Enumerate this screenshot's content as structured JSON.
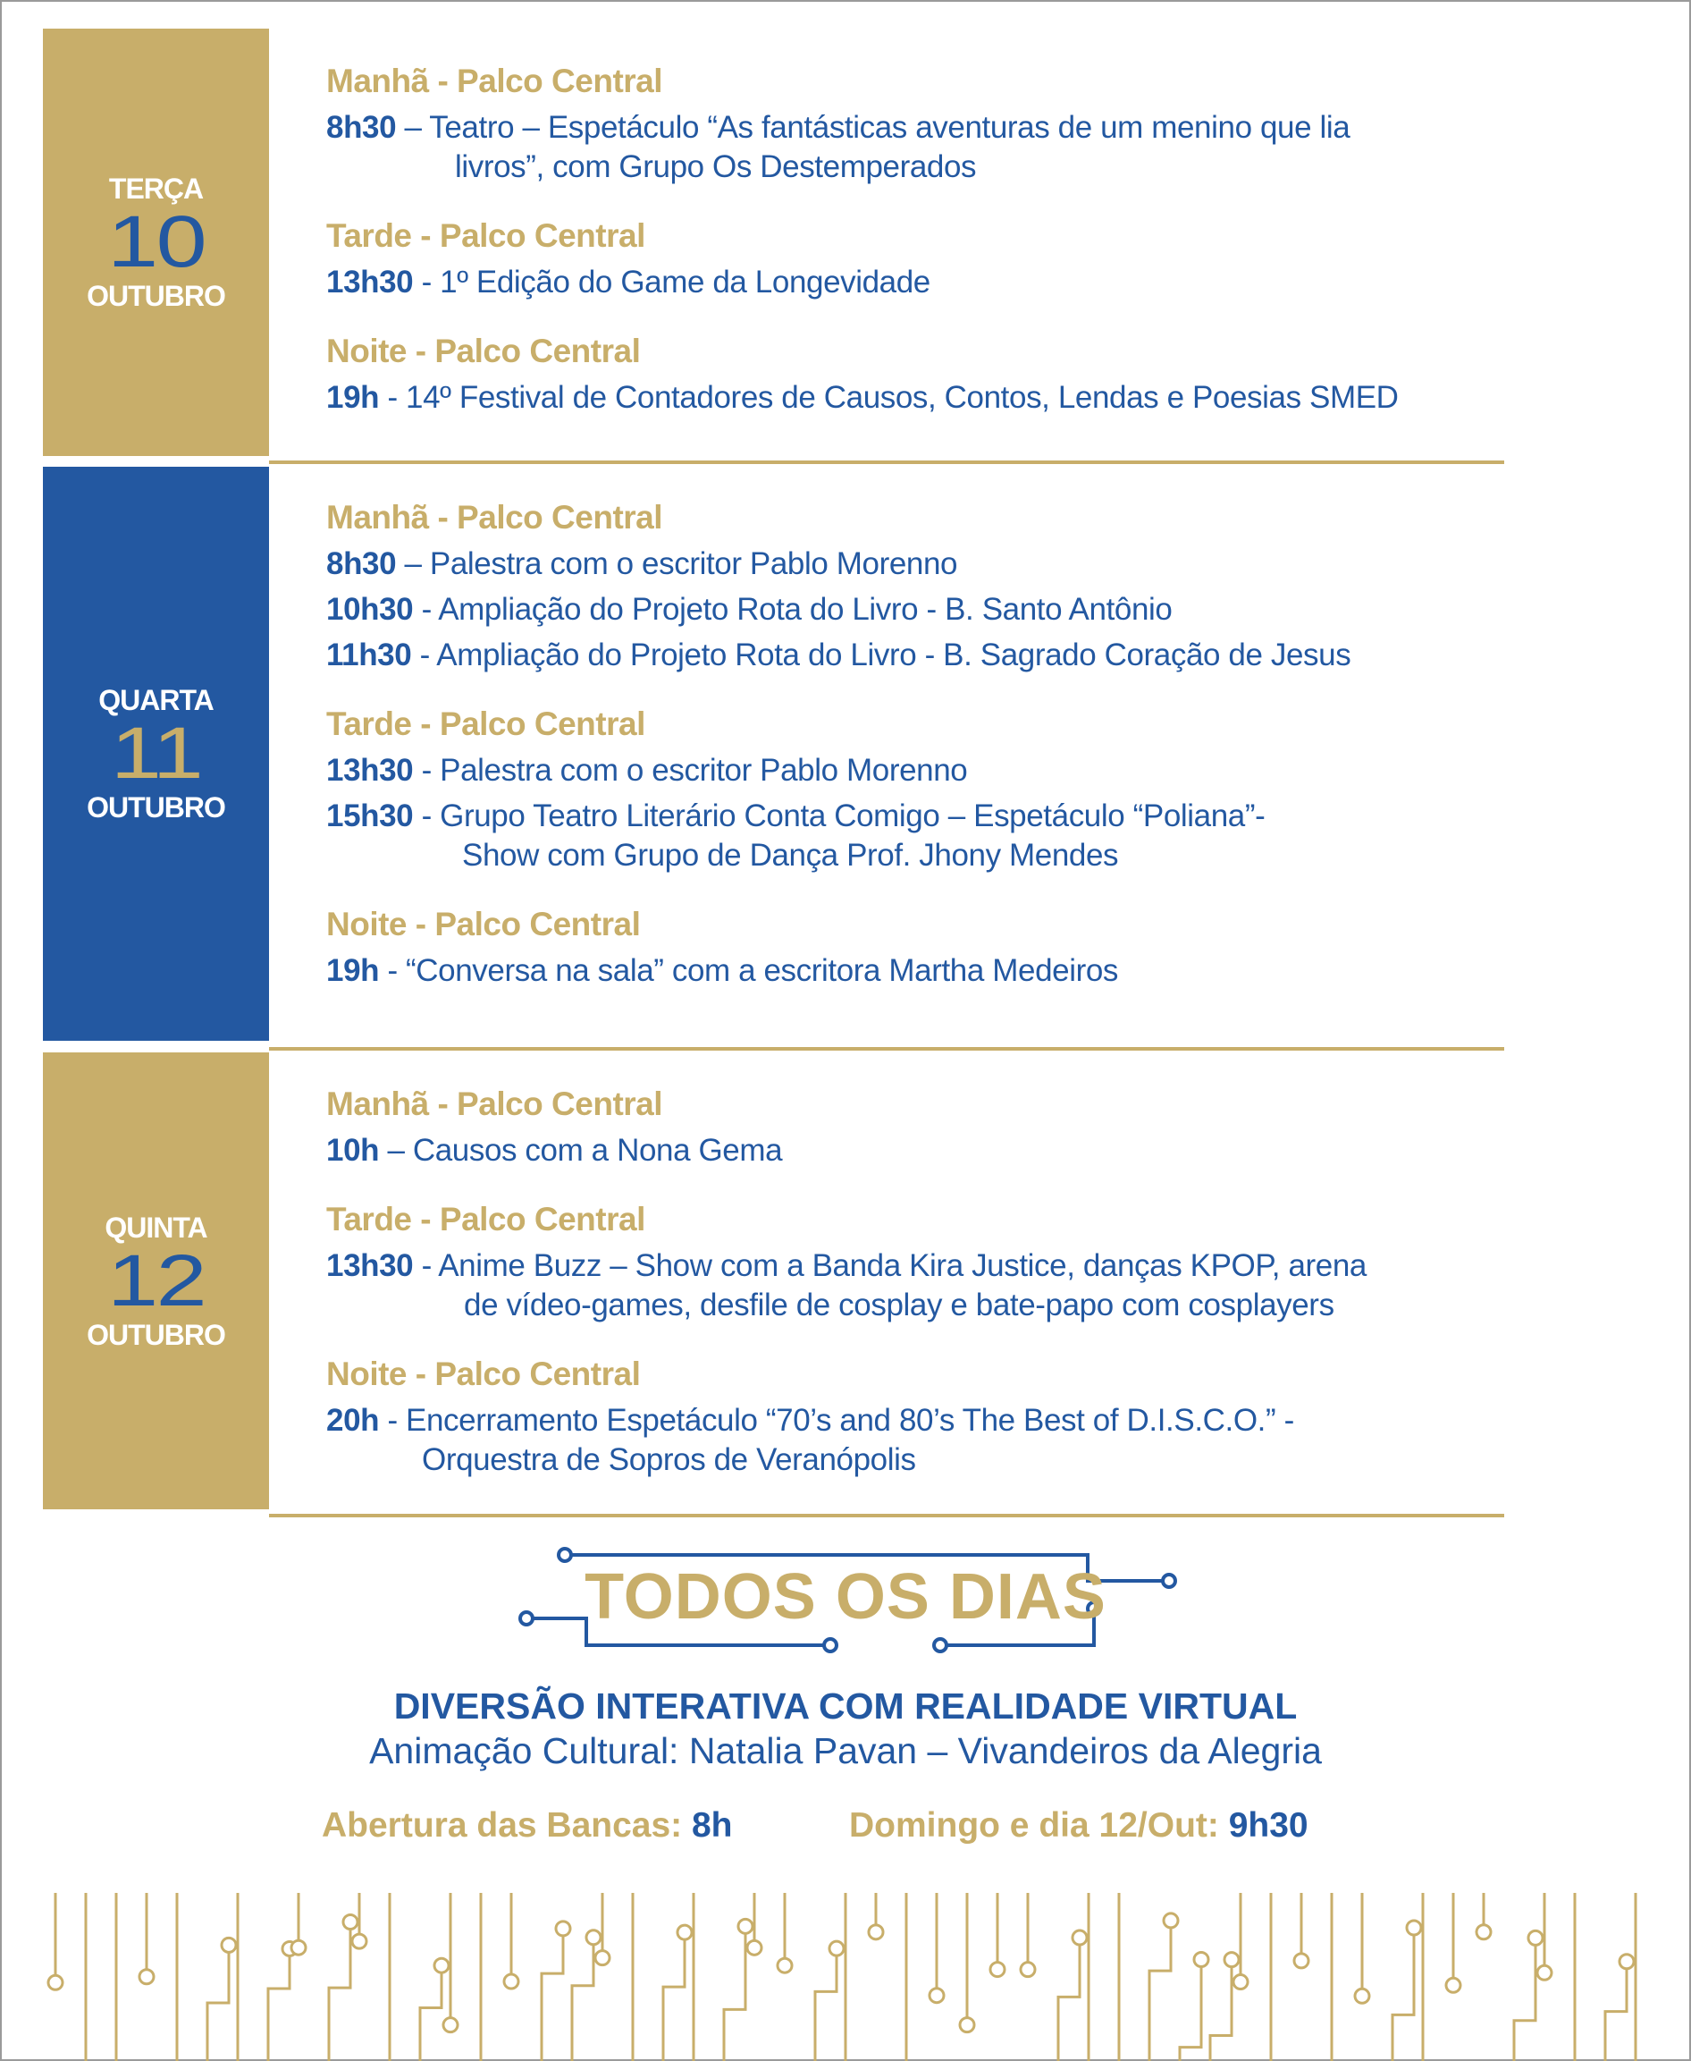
{
  "colors": {
    "gold": "#c8ae6a",
    "blue": "#2358a1"
  },
  "days": [
    {
      "name": "TERÇA",
      "number": "10",
      "month": "OUTUBRO",
      "box_color": "#c8ae6a",
      "num_color": "#2358a1",
      "sessions": [
        {
          "heading": "Manhã - Palco Central",
          "events": [
            {
              "time": "8h30",
              "lines": [
                " – Teatro – Espetáculo “As fantásticas aventuras de um menino que lia",
                "livros”, com Grupo Os Destemperados"
              ],
              "indent": "509"
            }
          ]
        },
        {
          "heading": "Tarde - Palco Central",
          "events": [
            {
              "time": "13h30",
              "lines": [
                " - 1º Edição do Game da Longevidade"
              ]
            }
          ]
        },
        {
          "heading": "Noite - Palco Central",
          "events": [
            {
              "time": "19h",
              "lines": [
                " - 14º Festival de Contadores de Causos, Contos, Lendas e Poesias SMED"
              ]
            }
          ]
        }
      ]
    },
    {
      "name": "QUARTA",
      "number": "11",
      "month": "OUTUBRO",
      "box_color": "#2358a1",
      "num_color": "#c8ae6a",
      "sessions": [
        {
          "heading": "Manhã - Palco Central",
          "events": [
            {
              "time": "8h30",
              "lines": [
                " – Palestra com o escritor Pablo Morenno"
              ]
            },
            {
              "time": "10h30",
              "lines": [
                " - Ampliação do Projeto Rota do Livro - B. Santo Antônio"
              ]
            },
            {
              "time": "11h30",
              "lines": [
                " - Ampliação do Projeto Rota do Livro - B. Sagrado Coração de Jesus"
              ]
            }
          ]
        },
        {
          "heading": "Tarde - Palco Central",
          "events": [
            {
              "time": "13h30",
              "lines": [
                " - Palestra com o escritor Pablo Morenno"
              ]
            },
            {
              "time": "15h30",
              "lines": [
                " - Grupo Teatro Literário Conta Comigo – Espetáculo “Poliana”-",
                "Show com Grupo de Dança Prof. Jhony Mendes"
              ],
              "indent": "517"
            }
          ]
        },
        {
          "heading": "Noite - Palco Central",
          "events": [
            {
              "time": "19h",
              "lines": [
                " - “Conversa na sala” com a escritora Martha Medeiros"
              ]
            }
          ]
        }
      ]
    },
    {
      "name": "QUINTA",
      "number": "12",
      "month": "OUTUBRO",
      "box_color": "#c8ae6a",
      "num_color": "#2358a1",
      "sessions": [
        {
          "heading": "Manhã - Palco Central",
          "events": [
            {
              "time": "10h",
              "lines": [
                " – Causos com a Nona Gema"
              ]
            }
          ]
        },
        {
          "heading": "Tarde - Palco Central",
          "events": [
            {
              "time": "13h30",
              "lines": [
                " - Anime Buzz – Show com a Banda Kira Justice, danças KPOP, arena",
                "de vídeo-games, desfile de cosplay e bate-papo com cosplayers"
              ],
              "indent": "519"
            }
          ]
        },
        {
          "heading": "Noite - Palco Central",
          "events": [
            {
              "time": "20h",
              "lines": [
                " - Encerramento Espetáculo “70’s and 80’s The Best of D.I.S.C.O.” -",
                "Orquestra de Sopros de Veranópolis"
              ],
              "indent": "472"
            }
          ]
        }
      ]
    }
  ],
  "footer": {
    "title": "TODOS OS DIAS",
    "highlight": "DIVERSÃO INTERATIVA COM REALIDADE VIRTUAL",
    "animation": "Animação Cultural: Natalia Pavan – Vivandeiros da Alegria",
    "opening_label": "Abertura das Bancas:",
    "opening_value": "8h",
    "sunday_label": "Domingo e dia 12/Out:",
    "sunday_value": "9h30"
  }
}
